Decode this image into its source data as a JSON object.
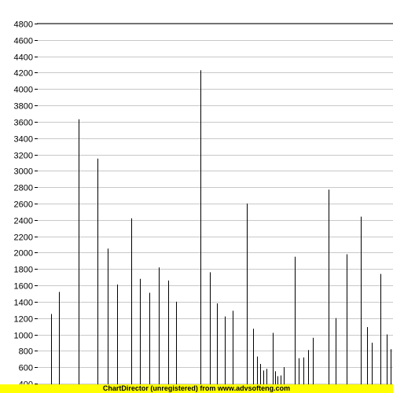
{
  "chart_data": {
    "type": "bar",
    "title": "",
    "xlabel": "",
    "ylabel": "",
    "ylim": [
      400,
      4800
    ],
    "yticks": [
      400,
      600,
      800,
      1000,
      1200,
      1400,
      1600,
      1800,
      2000,
      2200,
      2400,
      2600,
      2800,
      3000,
      3200,
      3400,
      3600,
      3800,
      4000,
      4200,
      4400,
      4600,
      4800
    ],
    "grid": true,
    "colors": {
      "bar": "#000000",
      "grid": "#c8c8c8",
      "axis": "#000000"
    },
    "values": [
      1250,
      1520,
      3630,
      3150,
      2050,
      1610,
      2420,
      1680,
      1510,
      1820,
      1660,
      1400,
      4230,
      1760,
      1380,
      1220,
      1290,
      2600,
      1070,
      730,
      640,
      560,
      580,
      1020,
      550,
      490,
      500,
      600,
      1950,
      710,
      720,
      810,
      960,
      2770,
      1200,
      1980,
      2440,
      1090,
      900,
      1740,
      1000,
      820
    ]
  },
  "watermark": "ChartDirector (unregistered) from www.advsofteng.com"
}
